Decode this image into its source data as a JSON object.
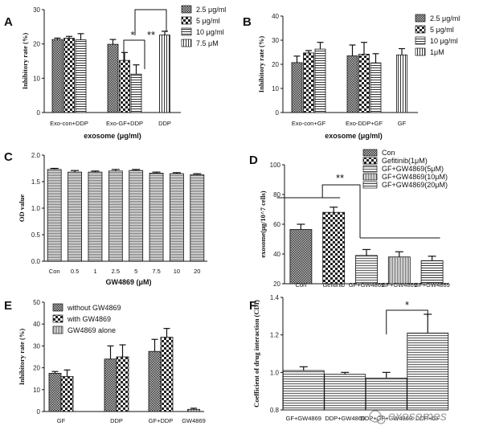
{
  "chart_data": [
    {
      "id": "A",
      "panel_label": "A",
      "type": "bar",
      "ylabel": "Inhibitory rate (%)",
      "xlabel": "exosome (μg/ml)",
      "ylim": [
        0,
        30
      ],
      "yticks": [
        "0",
        "10",
        "20",
        "30"
      ],
      "groups": [
        "Exo-con+DDP",
        "Exo-GF+DDP",
        "DDP"
      ],
      "legend": [
        "2.5 μg/ml",
        "5 μg/ml",
        "10 μg/ml",
        "7.5 μM"
      ],
      "bars": [
        {
          "group": 0,
          "series": 0,
          "value": 21.3,
          "err": 0.4
        },
        {
          "group": 0,
          "series": 1,
          "value": 21.7,
          "err": 0.5
        },
        {
          "group": 0,
          "series": 2,
          "value": 21.2,
          "err": 1.8
        },
        {
          "group": 1,
          "series": 0,
          "value": 19.9,
          "err": 1.4
        },
        {
          "group": 1,
          "series": 1,
          "value": 15.2,
          "err": 2.3
        },
        {
          "group": 1,
          "series": 2,
          "value": 11.2,
          "err": 2.7
        },
        {
          "group": 2,
          "series": 3,
          "value": 22.6,
          "err": 1.1
        }
      ],
      "annotations": [
        "*",
        "**"
      ]
    },
    {
      "id": "B",
      "panel_label": "B",
      "type": "bar",
      "ylabel": "Inhibitory rate (%)",
      "xlabel": "exosome (μg/ml)",
      "ylim": [
        0,
        40
      ],
      "yticks": [
        "0",
        "10",
        "20",
        "30",
        "40"
      ],
      "groups": [
        "Exo-con+GF",
        "Exo-DDP+GF",
        "GF"
      ],
      "legend": [
        "2.5 μg/ml",
        "5 μg/ml",
        "10 μg/ml",
        "1μM"
      ],
      "bars": [
        {
          "group": 0,
          "series": 0,
          "value": 20.7,
          "err": 2.7
        },
        {
          "group": 0,
          "series": 1,
          "value": 24.7,
          "err": 1.0
        },
        {
          "group": 0,
          "series": 2,
          "value": 26.3,
          "err": 2.8
        },
        {
          "group": 1,
          "series": 0,
          "value": 23.5,
          "err": 4.5
        },
        {
          "group": 1,
          "series": 1,
          "value": 24.2,
          "err": 4.9
        },
        {
          "group": 1,
          "series": 2,
          "value": 20.6,
          "err": 3.8
        },
        {
          "group": 2,
          "series": 3,
          "value": 23.9,
          "err": 2.6
        }
      ]
    },
    {
      "id": "C",
      "panel_label": "C",
      "type": "bar",
      "ylabel": "OD value",
      "xlabel": "GW4869 (μM)",
      "ylim": [
        0,
        2.0
      ],
      "yticks": [
        "0.0",
        "0.5",
        "1.0",
        "1.5",
        "2.0"
      ],
      "categories": [
        "Con",
        "0.5",
        "1",
        "2.5",
        "5",
        "7.5",
        "10",
        "20"
      ],
      "values": [
        1.73,
        1.68,
        1.68,
        1.7,
        1.71,
        1.66,
        1.65,
        1.63
      ],
      "errors": [
        0.02,
        0.03,
        0.02,
        0.03,
        0.02,
        0.02,
        0.02,
        0.02
      ]
    },
    {
      "id": "D",
      "panel_label": "D",
      "type": "bar",
      "ylabel": "exosome(μg/10^7 cells)",
      "xlabel": "",
      "ylim": [
        20,
        100
      ],
      "yticks": [
        "20",
        "40",
        "60",
        "80",
        "100"
      ],
      "categories": [
        "Con",
        "Gefitinib",
        "GF+GW4869",
        "GF+GW4869",
        "GF+GW4869"
      ],
      "values": [
        56.5,
        68.0,
        39.0,
        38.0,
        35.5
      ],
      "errors": [
        3.5,
        3.5,
        4.0,
        3.5,
        3.0
      ],
      "legend": [
        "Con",
        "Gefitinib(1μM)",
        "GF+GW4869(5μM)",
        "GF+GW4869(10μM)",
        "GF+GW4869(20μM)"
      ],
      "annotations": [
        "**"
      ]
    },
    {
      "id": "E",
      "panel_label": "E",
      "type": "bar",
      "ylabel": "Inhibitory rate (%)",
      "xlabel": "",
      "ylim": [
        0,
        50
      ],
      "yticks": [
        "0",
        "10",
        "20",
        "30",
        "40",
        "50"
      ],
      "groups": [
        "GF",
        "DDP",
        "GF+DDP",
        "GW4869"
      ],
      "legend": [
        "without GW4869",
        "with GW4869",
        "GW4869 alone"
      ],
      "bars": [
        {
          "group": 0,
          "series": 0,
          "value": 17.5,
          "err": 0.8
        },
        {
          "group": 0,
          "series": 1,
          "value": 16.0,
          "err": 3.0
        },
        {
          "group": 1,
          "series": 0,
          "value": 24.0,
          "err": 6.0
        },
        {
          "group": 1,
          "series": 1,
          "value": 25.0,
          "err": 5.5
        },
        {
          "group": 2,
          "series": 0,
          "value": 27.5,
          "err": 5.5
        },
        {
          "group": 2,
          "series": 1,
          "value": 34.0,
          "err": 4.0
        },
        {
          "group": 3,
          "series": 2,
          "value": 1.0,
          "err": 0.5
        }
      ]
    },
    {
      "id": "F",
      "panel_label": "F",
      "type": "bar",
      "ylabel": "Coefficient of drug interaction (CDI)",
      "xlabel": "",
      "ylim": [
        0.8,
        1.4
      ],
      "yticks": [
        "0.8",
        "1.0",
        "1.2",
        "1.4"
      ],
      "categories": [
        "GF+GW4869",
        "DDP+GW4869",
        "DDP+GF+GW4869",
        "DDP+GF"
      ],
      "values": [
        1.01,
        0.99,
        0.97,
        1.21
      ],
      "errors": [
        0.02,
        0.01,
        0.03,
        0.1
      ],
      "annotations": [
        "*"
      ]
    }
  ],
  "watermark": "exosomes"
}
